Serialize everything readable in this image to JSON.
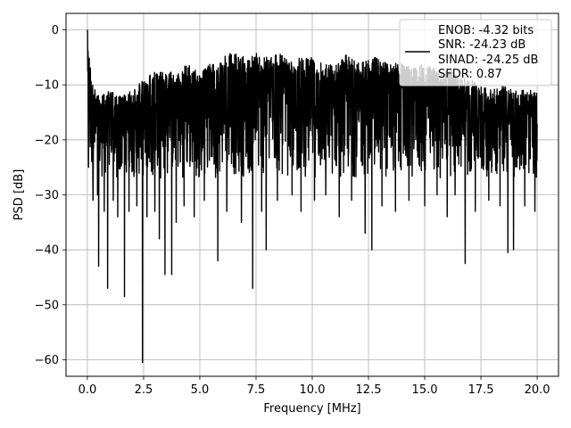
{
  "chart_data": {
    "type": "line",
    "title": "",
    "xlabel": "Frequency [MHz]",
    "ylabel": "PSD [dB]",
    "xlim": [
      -0.95,
      20.95
    ],
    "ylim": [
      -63.0,
      3.0
    ],
    "xticks": [
      0.0,
      2.5,
      5.0,
      7.5,
      10.0,
      12.5,
      15.0,
      17.5,
      20.0
    ],
    "xtick_labels": [
      "0.0",
      "2.5",
      "5.0",
      "7.5",
      "10.0",
      "12.5",
      "15.0",
      "17.5",
      "20.0"
    ],
    "yticks": [
      0,
      -10,
      -20,
      -30,
      -40,
      -50,
      -60
    ],
    "ytick_labels": [
      "0",
      "−10",
      "−20",
      "−30",
      "−40",
      "−50",
      "−60"
    ],
    "grid": true,
    "legend_position": "top-right",
    "legend": {
      "line_color": "#000000",
      "entries": [
        "ENOB: -4.32 bits",
        "SNR: -24.23 dB",
        "SINAD: -24.25 dB",
        "SFDR: 0.87"
      ]
    },
    "series": [
      {
        "color": "#000000",
        "x_range": [
          0.0,
          20.0
        ],
        "upper_envelope": [
          [
            0.0,
            0.0
          ],
          [
            0.2,
            -9
          ],
          [
            0.5,
            -12
          ],
          [
            1.0,
            -11
          ],
          [
            1.5,
            -12
          ],
          [
            2.0,
            -11
          ],
          [
            2.5,
            -9
          ],
          [
            3.0,
            -7
          ],
          [
            3.5,
            -8
          ],
          [
            4.0,
            -7
          ],
          [
            4.5,
            -6
          ],
          [
            5.0,
            -8
          ],
          [
            5.5,
            -6
          ],
          [
            6.0,
            -5
          ],
          [
            6.5,
            -4
          ],
          [
            7.0,
            -5
          ],
          [
            7.5,
            -4
          ],
          [
            8.0,
            -5
          ],
          [
            8.5,
            -4
          ],
          [
            9.0,
            -6
          ],
          [
            9.5,
            -5
          ],
          [
            10.0,
            -5
          ],
          [
            10.5,
            -6
          ],
          [
            11.0,
            -6
          ],
          [
            11.5,
            -4
          ],
          [
            12.0,
            -6
          ],
          [
            12.5,
            -5
          ],
          [
            13.0,
            -5
          ],
          [
            13.5,
            -6
          ],
          [
            14.0,
            -6
          ],
          [
            14.5,
            -7
          ],
          [
            15.0,
            -6
          ],
          [
            15.5,
            -7
          ],
          [
            16.0,
            -7
          ],
          [
            16.5,
            -8
          ],
          [
            17.0,
            -9
          ],
          [
            17.5,
            -10
          ],
          [
            18.0,
            -11
          ],
          [
            18.5,
            -10
          ],
          [
            19.0,
            -11
          ],
          [
            19.5,
            -11
          ],
          [
            20.0,
            -11
          ]
        ],
        "typical_floor_db": -27,
        "dips": [
          [
            0.05,
            -25
          ],
          [
            0.25,
            -31
          ],
          [
            0.45,
            -30
          ],
          [
            0.5,
            -43
          ],
          [
            0.75,
            -33
          ],
          [
            0.9,
            -47
          ],
          [
            1.15,
            -31
          ],
          [
            1.35,
            -34
          ],
          [
            1.65,
            -48.5
          ],
          [
            1.85,
            -33
          ],
          [
            2.2,
            -32
          ],
          [
            2.45,
            -60.5
          ],
          [
            2.65,
            -34
          ],
          [
            3.0,
            -33
          ],
          [
            3.2,
            -38
          ],
          [
            3.45,
            -44.5
          ],
          [
            3.75,
            -44.5
          ],
          [
            3.95,
            -35
          ],
          [
            4.3,
            -32
          ],
          [
            4.75,
            -34
          ],
          [
            5.2,
            -31
          ],
          [
            5.8,
            -42
          ],
          [
            6.2,
            -33
          ],
          [
            6.85,
            -35
          ],
          [
            7.35,
            -47
          ],
          [
            7.75,
            -33
          ],
          [
            7.95,
            -40
          ],
          [
            8.45,
            -31
          ],
          [
            9.1,
            -30
          ],
          [
            9.5,
            -33
          ],
          [
            10.1,
            -31
          ],
          [
            10.6,
            -30
          ],
          [
            11.2,
            -34
          ],
          [
            11.75,
            -31
          ],
          [
            12.35,
            -37
          ],
          [
            12.65,
            -40
          ],
          [
            13.1,
            -32
          ],
          [
            13.7,
            -33
          ],
          [
            14.3,
            -31
          ],
          [
            15.0,
            -32
          ],
          [
            15.55,
            -30
          ],
          [
            16.0,
            -34
          ],
          [
            16.35,
            -30
          ],
          [
            16.8,
            -42.5
          ],
          [
            17.25,
            -33
          ],
          [
            17.85,
            -31
          ],
          [
            18.35,
            -32
          ],
          [
            18.7,
            -40.5
          ],
          [
            18.95,
            -40
          ],
          [
            19.45,
            -32
          ],
          [
            19.9,
            -33
          ]
        ]
      }
    ]
  }
}
